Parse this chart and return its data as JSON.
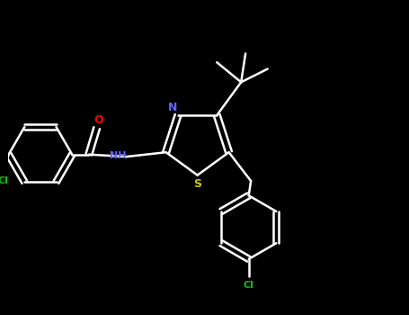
{
  "bg_color": "#000000",
  "bond_color": "#ffffff",
  "bond_width": 1.8,
  "N_color": "#6464ff",
  "S_color": "#c8c800",
  "O_color": "#ff0000",
  "Cl_color": "#00c800",
  "figsize": [
    4.55,
    3.5
  ],
  "dpi": 100,
  "xlim": [
    0,
    9.1
  ],
  "ylim": [
    0,
    7.0
  ]
}
